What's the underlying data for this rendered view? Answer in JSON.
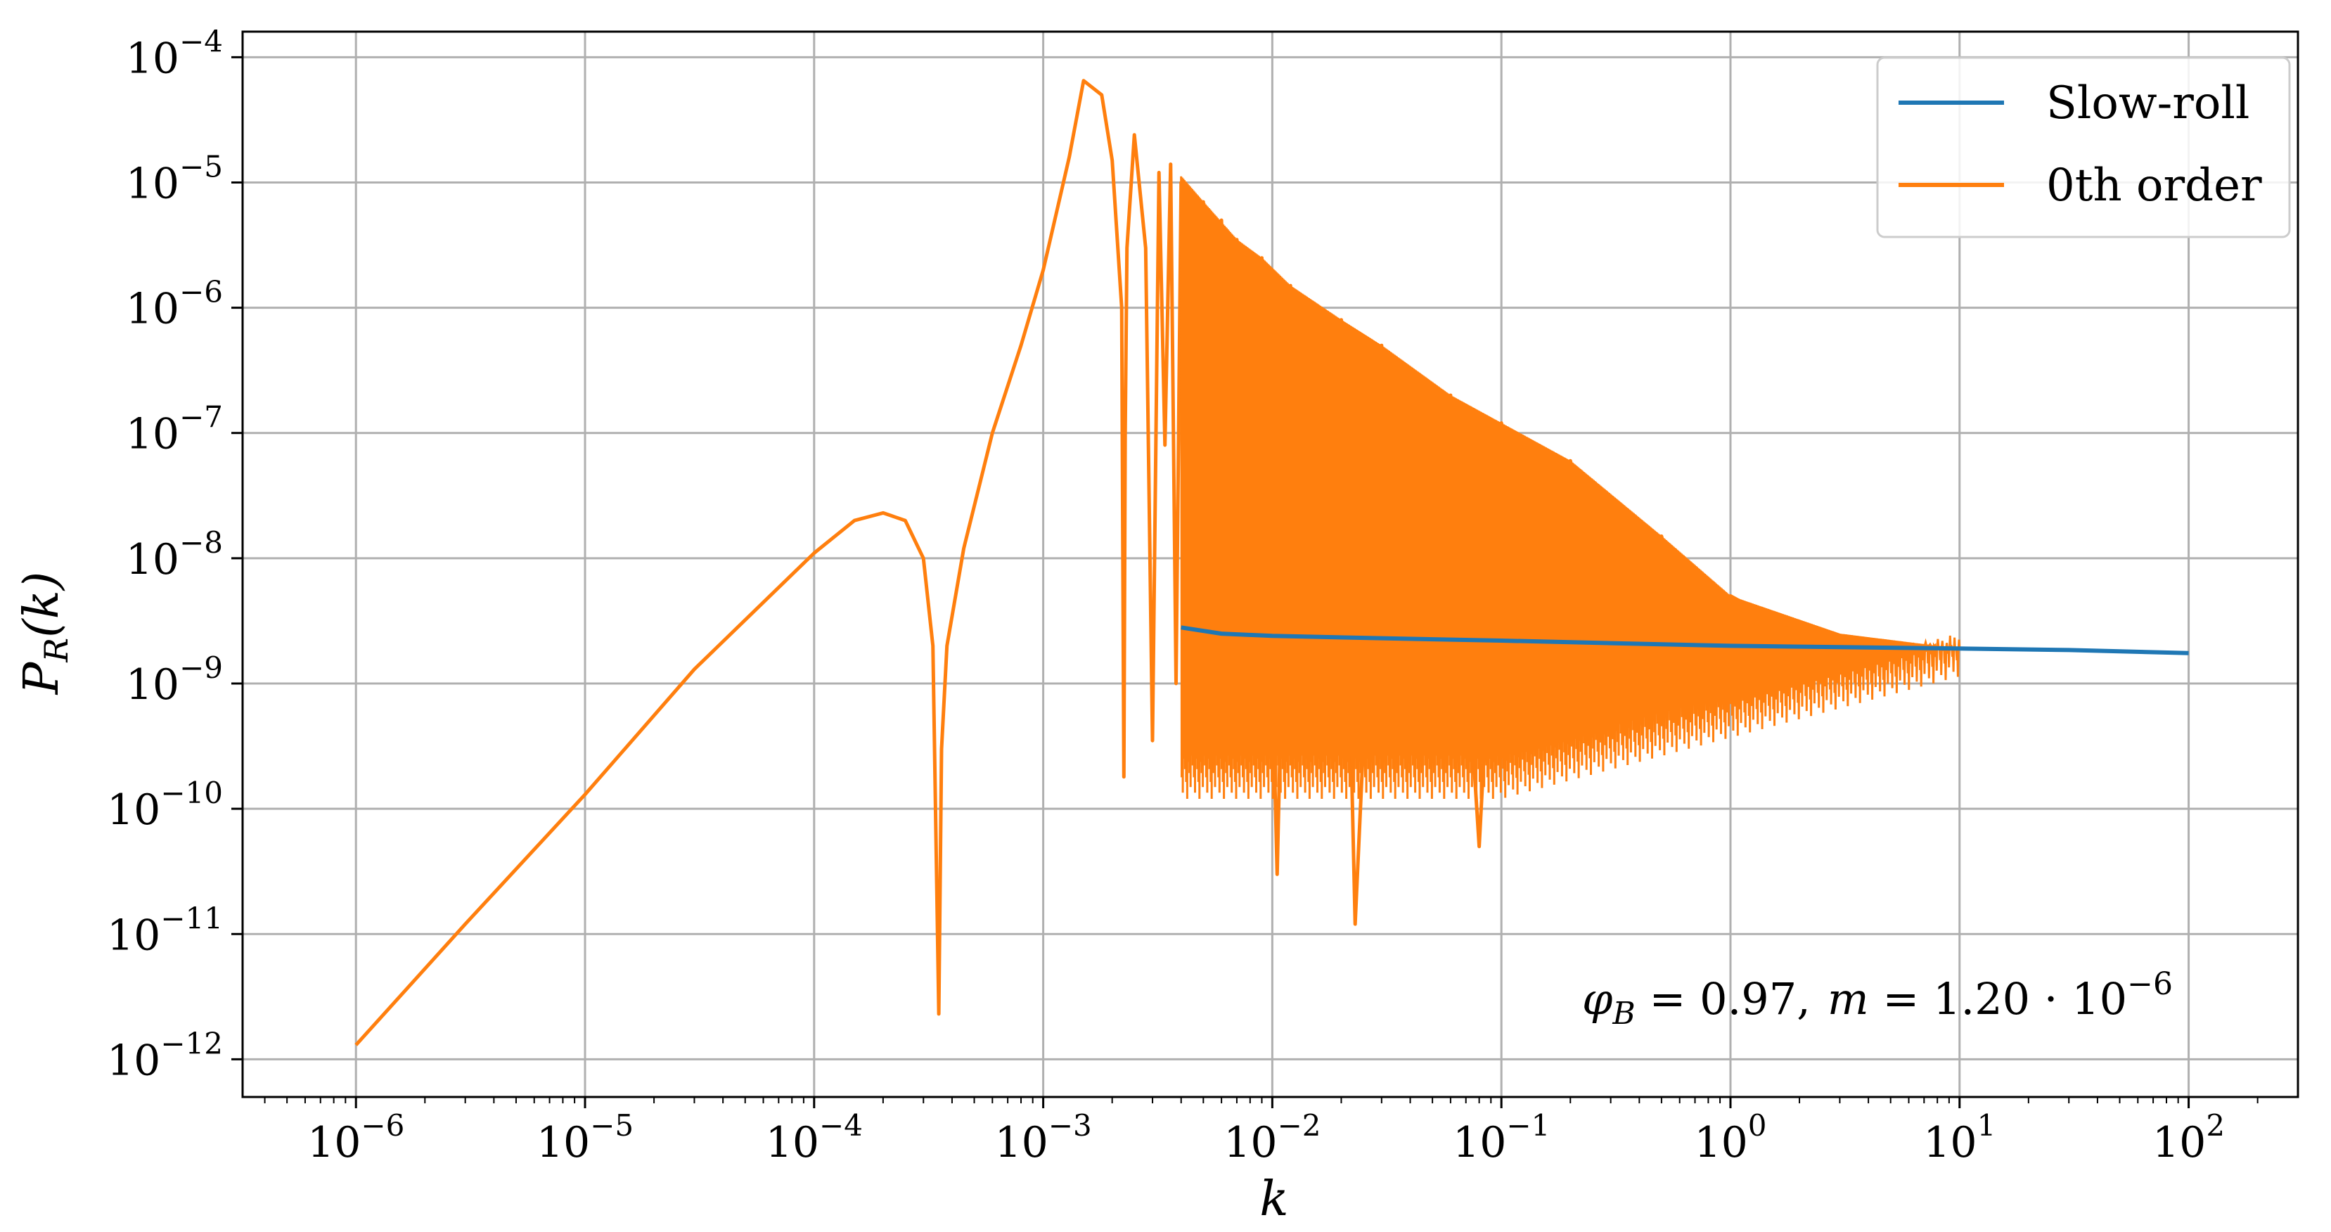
{
  "chart_data": {
    "type": "line",
    "title": "",
    "xlabel": "k",
    "ylabel_main": "P",
    "ylabel_sub": "R",
    "ylabel_arg": "(k)",
    "xscale": "log",
    "yscale": "log",
    "xlim": [
      3.2e-07,
      300
    ],
    "ylim": [
      5e-13,
      0.00016
    ],
    "grid": true,
    "legend_position": "top-right",
    "x_ticks": [
      {
        "value": 1e-06,
        "base": "10",
        "exp": "−6"
      },
      {
        "value": 1e-05,
        "base": "10",
        "exp": "−5"
      },
      {
        "value": 0.0001,
        "base": "10",
        "exp": "−4"
      },
      {
        "value": 0.001,
        "base": "10",
        "exp": "−3"
      },
      {
        "value": 0.01,
        "base": "10",
        "exp": "−2"
      },
      {
        "value": 0.1,
        "base": "10",
        "exp": "−1"
      },
      {
        "value": 1,
        "base": "10",
        "exp": "0"
      },
      {
        "value": 10,
        "base": "10",
        "exp": "1"
      },
      {
        "value": 100,
        "base": "10",
        "exp": "2"
      }
    ],
    "y_ticks": [
      {
        "value": 1e-12,
        "base": "10",
        "exp": "−12"
      },
      {
        "value": 1e-11,
        "base": "10",
        "exp": "−11"
      },
      {
        "value": 1e-10,
        "base": "10",
        "exp": "−10"
      },
      {
        "value": 1e-09,
        "base": "10",
        "exp": "−9"
      },
      {
        "value": 1e-08,
        "base": "10",
        "exp": "−8"
      },
      {
        "value": 1e-07,
        "base": "10",
        "exp": "−7"
      },
      {
        "value": 1e-06,
        "base": "10",
        "exp": "−6"
      },
      {
        "value": 1e-05,
        "base": "10",
        "exp": "−5"
      },
      {
        "value": 0.0001,
        "base": "10",
        "exp": "−4"
      }
    ],
    "series": [
      {
        "name": "Slow-roll",
        "color": "#1f77b4",
        "x": [
          0.004,
          0.006,
          0.01,
          0.03,
          0.1,
          0.3,
          1,
          3,
          10,
          30,
          100
        ],
        "y": [
          2.8e-09,
          2.5e-09,
          2.4e-09,
          2.3e-09,
          2.2e-09,
          2.1e-09,
          2e-09,
          1.95e-09,
          1.9e-09,
          1.85e-09,
          1.75e-09
        ]
      },
      {
        "name": "0th order",
        "color": "#ff7f0e",
        "x": [
          1e-06,
          3e-06,
          1e-05,
          3e-05,
          0.0001,
          0.00015,
          0.0002,
          0.00025,
          0.0003,
          0.00033,
          0.00035,
          0.00036,
          0.00038,
          0.00045,
          0.0006,
          0.0008,
          0.001,
          0.0013,
          0.0015,
          0.0018,
          0.002,
          0.0022,
          0.00225,
          0.00228,
          0.00232,
          0.0025,
          0.0028,
          0.003,
          0.0032,
          0.0034,
          0.0036,
          0.0038,
          0.004,
          0.0042,
          0.0045,
          0.0048,
          0.005,
          0.0055,
          0.006,
          0.0065,
          0.007,
          0.008,
          0.009,
          0.0105,
          0.012,
          0.015,
          0.02,
          0.023,
          0.03,
          0.04,
          0.06,
          0.08,
          0.1,
          0.15,
          0.2,
          0.3,
          0.5,
          0.7,
          1,
          2,
          3,
          5,
          10
        ],
        "y": [
          1.3e-12,
          1.2e-11,
          1.3e-10,
          1.3e-09,
          1.1e-08,
          2e-08,
          2.3e-08,
          2e-08,
          1e-08,
          2e-09,
          2.3e-12,
          3e-10,
          2e-09,
          1.2e-08,
          1e-07,
          5e-07,
          2e-06,
          1.6e-05,
          6.5e-05,
          5e-05,
          1.5e-05,
          1e-06,
          1.8e-10,
          1e-07,
          3e-06,
          2.4e-05,
          3e-06,
          3.5e-10,
          1.2e-05,
          8e-08,
          1.4e-05,
          1e-09,
          1e-05,
          4e-10,
          8e-06,
          1e-09,
          7e-06,
          2e-10,
          5e-06,
          1e-09,
          3.5e-06,
          3e-10,
          2.5e-06,
          3e-11,
          1.5e-06,
          4e-10,
          8e-07,
          1.2e-11,
          5e-07,
          3e-10,
          2e-07,
          5e-11,
          1.2e-07,
          1e-09,
          6e-08,
          1e-09,
          1.5e-08,
          1e-09,
          5e-09,
          2.5e-09,
          1.9e-09,
          2e-09,
          1.9e-09
        ]
      }
    ],
    "annotation": {
      "phi": "φ",
      "phi_sub": "B",
      "phi_value": " = 0.97,",
      "m": "m",
      "m_value": " = 1.20 · 10",
      "m_exp": "−6"
    }
  }
}
